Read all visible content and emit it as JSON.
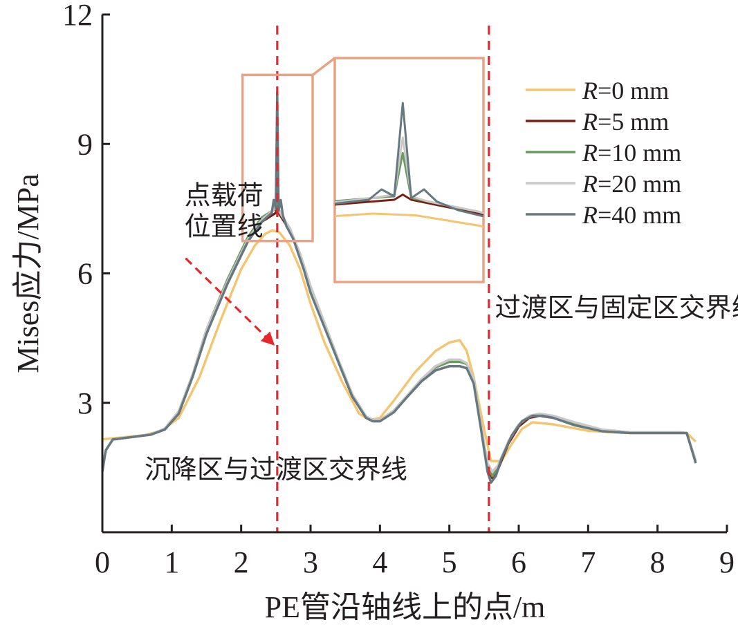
{
  "chart_data": {
    "type": "line",
    "xlabel": "PE管沿轴线上的点/m",
    "ylabel": "Mises应力/MPa",
    "xlim": [
      0,
      9
    ],
    "ylim": [
      0,
      12
    ],
    "xticks": [
      "0",
      "1",
      "2",
      "3",
      "4",
      "5",
      "6",
      "7",
      "8",
      "9"
    ],
    "yticks": [
      "3",
      "6",
      "9",
      "12"
    ],
    "grid": false,
    "legend_position": "top-right",
    "vlines": [
      {
        "x": 2.52,
        "style": "dashed",
        "color": "#e8262b"
      },
      {
        "x": 5.57,
        "style": "dashed",
        "color": "#e8262b"
      }
    ],
    "annotations": [
      {
        "text_lines": [
          "点载荷",
          "位置线"
        ],
        "x": 1.75,
        "y": 7.6
      },
      {
        "text": "过渡区与固定区交界线",
        "x": 7.55,
        "y": 5.0
      },
      {
        "text": "沉降区与过渡区交界线",
        "x": 2.5,
        "y": 1.25
      }
    ],
    "arrow": {
      "from": [
        1.2,
        6.35
      ],
      "to": [
        2.47,
        4.35
      ],
      "color": "#e8262b"
    },
    "inset": {
      "source_box": {
        "x": [
          2.02,
          3.03
        ],
        "y": [
          6.75,
          10.6
        ]
      },
      "zoom_region": {
        "x": [
          2.36,
          2.71
        ]
      },
      "box_color": "#e9a283"
    },
    "series": [
      {
        "name": "R=0 mm",
        "color": "#f5c46f",
        "x": [
          0,
          0.1,
          0.3,
          0.6,
          0.85,
          1.1,
          1.4,
          1.7,
          2.0,
          2.2,
          2.35,
          2.45,
          2.55,
          2.7,
          2.85,
          3.0,
          3.2,
          3.45,
          3.7,
          3.85,
          4.0,
          4.2,
          4.5,
          4.8,
          5.0,
          5.15,
          5.25,
          5.35,
          5.5,
          5.6,
          5.75,
          5.9,
          6.05,
          6.2,
          6.5,
          7.0,
          7.5,
          8.0,
          8.3,
          8.42,
          8.55
        ],
        "y": [
          2.15,
          2.17,
          2.2,
          2.25,
          2.35,
          2.65,
          3.6,
          4.9,
          6.1,
          6.65,
          6.92,
          7.0,
          6.95,
          6.65,
          6.1,
          5.3,
          4.4,
          3.5,
          2.75,
          2.6,
          2.65,
          3.05,
          3.7,
          4.2,
          4.4,
          4.45,
          4.2,
          3.6,
          2.4,
          1.65,
          1.65,
          2.05,
          2.4,
          2.55,
          2.5,
          2.35,
          2.3,
          2.3,
          2.3,
          2.3,
          2.1
        ]
      },
      {
        "name": "R=5 mm",
        "color": "#7a1f12",
        "x": [
          0,
          0.05,
          0.15,
          0.4,
          0.7,
          0.9,
          1.1,
          1.3,
          1.5,
          1.8,
          2.1,
          2.3,
          2.45,
          2.5,
          2.52,
          2.54,
          2.58,
          2.7,
          2.85,
          3.0,
          3.2,
          3.4,
          3.6,
          3.8,
          3.9,
          4.0,
          4.2,
          4.4,
          4.6,
          4.8,
          5.0,
          5.15,
          5.25,
          5.35,
          5.45,
          5.55,
          5.62,
          5.7,
          5.85,
          6.0,
          6.15,
          6.3,
          6.5,
          6.8,
          7.2,
          7.6,
          8.0,
          8.3,
          8.42,
          8.55
        ],
        "y": [
          1.5,
          1.9,
          2.15,
          2.2,
          2.27,
          2.38,
          2.75,
          3.6,
          4.6,
          5.75,
          6.75,
          7.2,
          7.35,
          7.4,
          7.55,
          7.4,
          7.3,
          7.0,
          6.4,
          5.65,
          4.8,
          3.95,
          3.15,
          2.65,
          2.58,
          2.58,
          2.8,
          3.15,
          3.5,
          3.75,
          3.85,
          3.85,
          3.8,
          3.5,
          2.5,
          1.5,
          1.25,
          1.45,
          2.05,
          2.45,
          2.65,
          2.7,
          2.65,
          2.5,
          2.35,
          2.3,
          2.3,
          2.3,
          2.3,
          1.65
        ]
      },
      {
        "name": "R=10 mm",
        "color": "#6a9a5f",
        "x": [
          0,
          0.05,
          0.15,
          0.4,
          0.7,
          0.9,
          1.1,
          1.3,
          1.5,
          1.8,
          2.1,
          2.3,
          2.45,
          2.5,
          2.52,
          2.54,
          2.58,
          2.7,
          2.85,
          3.0,
          3.2,
          3.4,
          3.6,
          3.8,
          3.9,
          4.0,
          4.2,
          4.4,
          4.6,
          4.8,
          5.0,
          5.15,
          5.25,
          5.35,
          5.45,
          5.55,
          5.62,
          5.7,
          5.85,
          6.0,
          6.15,
          6.3,
          6.5,
          6.8,
          7.2,
          7.6,
          8.0,
          8.3,
          8.42,
          8.55
        ],
        "y": [
          1.5,
          1.9,
          2.15,
          2.2,
          2.27,
          2.4,
          2.8,
          3.65,
          4.7,
          5.85,
          6.85,
          7.3,
          7.45,
          7.5,
          8.75,
          7.45,
          7.35,
          7.05,
          6.45,
          5.7,
          4.85,
          4.0,
          3.2,
          2.68,
          2.6,
          2.6,
          2.82,
          3.18,
          3.55,
          3.82,
          3.95,
          3.95,
          3.9,
          3.55,
          2.55,
          1.55,
          1.3,
          1.5,
          2.1,
          2.5,
          2.68,
          2.72,
          2.68,
          2.52,
          2.37,
          2.32,
          2.32,
          2.32,
          2.3,
          1.65
        ]
      },
      {
        "name": "R=20 mm",
        "color": "#c9c9c9",
        "x": [
          0,
          0.05,
          0.15,
          0.4,
          0.7,
          0.9,
          1.1,
          1.3,
          1.5,
          1.8,
          2.1,
          2.3,
          2.45,
          2.5,
          2.52,
          2.54,
          2.58,
          2.7,
          2.85,
          3.0,
          3.2,
          3.4,
          3.6,
          3.8,
          3.9,
          4.0,
          4.2,
          4.4,
          4.6,
          4.8,
          5.0,
          5.15,
          5.25,
          5.35,
          5.45,
          5.55,
          5.62,
          5.7,
          5.85,
          6.0,
          6.15,
          6.3,
          6.5,
          6.8,
          7.2,
          7.6,
          8.0,
          8.3,
          8.42,
          8.55
        ],
        "y": [
          1.5,
          1.9,
          2.15,
          2.2,
          2.27,
          2.4,
          2.8,
          3.65,
          4.7,
          5.8,
          6.8,
          7.25,
          7.45,
          7.55,
          9.2,
          7.5,
          7.35,
          7.05,
          6.45,
          5.7,
          4.85,
          4.0,
          3.2,
          2.68,
          2.6,
          2.6,
          2.82,
          3.18,
          3.55,
          3.85,
          4.0,
          4.0,
          3.92,
          3.55,
          2.55,
          1.6,
          1.4,
          1.55,
          2.1,
          2.5,
          2.7,
          2.75,
          2.7,
          2.55,
          2.38,
          2.32,
          2.32,
          2.32,
          2.3,
          1.65
        ]
      },
      {
        "name": "R=40 mm",
        "color": "#667880",
        "x": [
          0,
          0.05,
          0.15,
          0.4,
          0.7,
          0.9,
          1.1,
          1.3,
          1.5,
          1.8,
          2.1,
          2.3,
          2.44,
          2.47,
          2.5,
          2.52,
          2.54,
          2.57,
          2.6,
          2.65,
          2.75,
          2.9,
          3.0,
          3.2,
          3.4,
          3.6,
          3.8,
          3.9,
          4.0,
          4.2,
          4.4,
          4.6,
          4.8,
          5.0,
          5.15,
          5.25,
          5.35,
          5.45,
          5.55,
          5.6,
          5.67,
          5.75,
          5.9,
          6.05,
          6.2,
          6.35,
          6.5,
          6.8,
          7.2,
          7.6,
          8.0,
          8.3,
          8.42,
          8.55
        ],
        "y": [
          1.4,
          1.9,
          2.15,
          2.2,
          2.26,
          2.38,
          2.75,
          3.6,
          4.6,
          5.75,
          6.75,
          7.2,
          7.4,
          7.7,
          7.5,
          10.2,
          7.45,
          7.7,
          7.35,
          7.1,
          6.8,
          6.1,
          5.55,
          4.75,
          3.95,
          3.15,
          2.65,
          2.57,
          2.57,
          2.78,
          3.15,
          3.5,
          3.75,
          3.85,
          3.85,
          3.8,
          3.45,
          2.45,
          1.4,
          1.15,
          1.3,
          1.7,
          2.25,
          2.58,
          2.7,
          2.7,
          2.65,
          2.48,
          2.34,
          2.3,
          2.3,
          2.3,
          2.3,
          1.6
        ]
      }
    ]
  }
}
